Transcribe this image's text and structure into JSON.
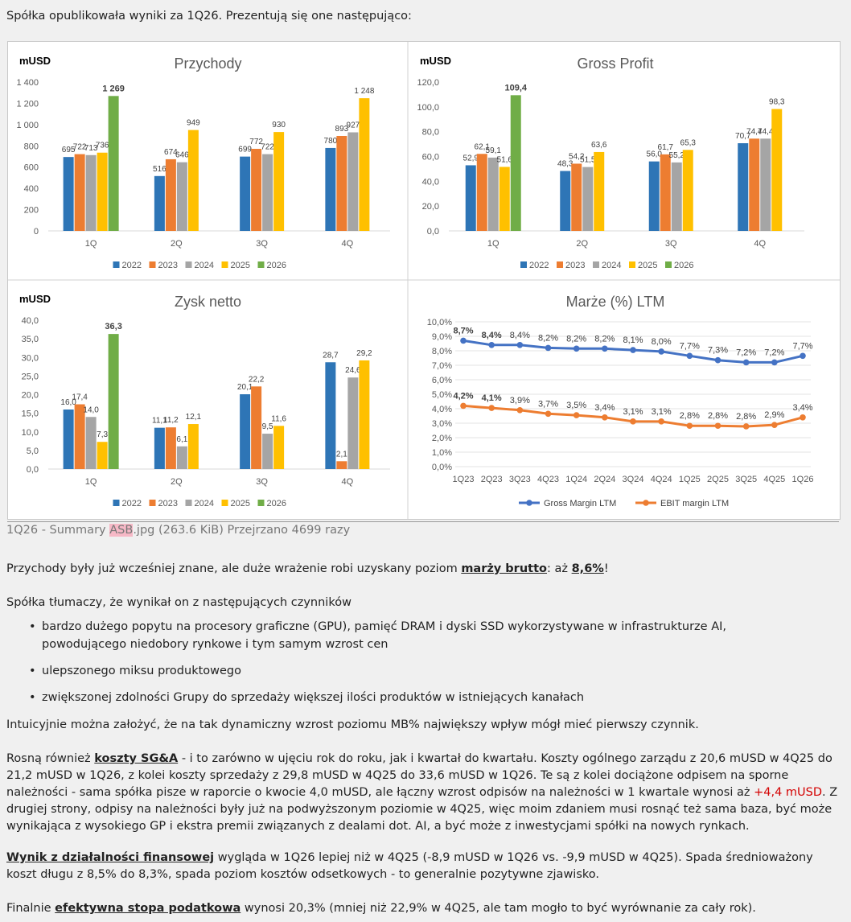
{
  "intro": "Spółka opublikowała wyniki za 1Q26. Prezentują się one następująco:",
  "caption": {
    "pre": "1Q26 - Summary ",
    "hl": "ASB",
    "post": ".jpg (263.6 KiB) Przejrzano 4699 razy"
  },
  "p1": {
    "a": "Przychody były już wcześniej znane, ale duże wrażenie robi uzyskany poziom ",
    "b": "marży brutto",
    "c": ": aż ",
    "d": "8,6%",
    "e": "!"
  },
  "p2": "Spółka tłumaczy, że wynikał on z następujących czynników",
  "bullets": [
    "bardzo dużego popytu na procesory graficzne (GPU), pamięć DRAM i dyski SSD wykorzystywane w infrastrukturze AI, powodującego niedobory rynkowe i tym samym wzrost cen",
    "ulepszonego miksu produktowego",
    "zwiększonej zdolności Grupy do sprzedaży większej ilości produktów w istniejących kanałach"
  ],
  "p3": "Intuicyjnie można założyć, że na tak dynamiczny wzrost poziomu MB% największy wpływ mógł mieć pierwszy czynnik.",
  "p4": {
    "a": "Rosną również ",
    "b": "koszty SG&A",
    "c": " - i to zarówno w ujęciu rok do roku, jak i kwartał do kwartału. Koszty ogólnego zarządu z 20,6 mUSD w 4Q25 do 21,2 mUSD w 1Q26, z kolei koszty sprzedaży z 29,8 mUSD w 4Q25 do 33,6 mUSD w 1Q26. Te są z kolei dociążone odpisem na sporne należności - sama spółka pisze w raporcie o kwocie 4,0 mUSD, ale łączny wzrost odpisów na należności w 1 kwartale wynosi aż ",
    "d": "+4,4 mUSD",
    "e": ". Z drugiej strony, odpisy na należności były już na podwyższonym poziomie w 4Q25, więc moim zdaniem musi rosnąć też sama baza, być może wynikająca z wysokiego GP i ekstra premii związanych z dealami dot. AI, a być może z inwestycjami spółki na nowych rynkach."
  },
  "p5": {
    "a": "Wynik z działalności finansowej",
    "b": " wygląda w 1Q26 lepiej niż w 4Q25 (-8,9 mUSD w 1Q26 vs. -9,9 mUSD w 4Q25). Spada średnioważony koszt długu z 8,5% do 8,3%, spada poziom kosztów odsetkowych - to generalnie pozytywne zjawisko."
  },
  "p6": {
    "a": "Finalnie ",
    "b": "efektywna stopa podatkowa",
    "c": " wynosi 20,3% (mniej niż 22,9% w 4Q25, ale tam mogło to być wyrównanie za cały rok)."
  },
  "colors": {
    "2022": "#2e75b6",
    "2023": "#ed7d31",
    "2024": "#a5a5a5",
    "2025": "#ffc000",
    "2026": "#70ad47",
    "gm": "#4472c4",
    "ebit": "#ed7d31"
  },
  "chart_data": [
    {
      "type": "bar",
      "title": "Przychody",
      "unit": "mUSD",
      "categories": [
        "1Q",
        "2Q",
        "3Q",
        "4Q"
      ],
      "ylim": [
        0,
        1400
      ],
      "yticks": [
        "0",
        "200",
        "400",
        "600",
        "800",
        "1 000",
        "1 200",
        "1 400"
      ],
      "series": [
        {
          "name": "2022",
          "values": [
            695,
            516,
            699,
            780
          ],
          "labels": [
            "695",
            "516",
            "699",
            "780"
          ]
        },
        {
          "name": "2023",
          "values": [
            722,
            674,
            772,
            893
          ],
          "labels": [
            "722",
            "674",
            "772",
            "893"
          ]
        },
        {
          "name": "2024",
          "values": [
            713,
            646,
            722,
            927
          ],
          "labels": [
            "713",
            "646",
            "722",
            "927"
          ]
        },
        {
          "name": "2025",
          "values": [
            736,
            949,
            930,
            1248
          ],
          "labels": [
            "736",
            "949",
            "930",
            "1 248"
          ]
        },
        {
          "name": "2026",
          "values": [
            1269,
            null,
            null,
            null
          ],
          "labels": [
            "1 269",
            "",
            "",
            ""
          ]
        }
      ]
    },
    {
      "type": "bar",
      "title": "Gross Profit",
      "unit": "mUSD",
      "categories": [
        "1Q",
        "2Q",
        "3Q",
        "4Q"
      ],
      "ylim": [
        0,
        120
      ],
      "yticks": [
        "0,0",
        "20,0",
        "40,0",
        "60,0",
        "80,0",
        "100,0",
        "120,0"
      ],
      "series": [
        {
          "name": "2022",
          "values": [
            52.9,
            48.3,
            56.0,
            70.7
          ],
          "labels": [
            "52,9",
            "48,3",
            "56,0",
            "70,7"
          ]
        },
        {
          "name": "2023",
          "values": [
            62.1,
            54.2,
            61.7,
            74.4
          ],
          "labels": [
            "62,1",
            "54,2",
            "61,7",
            "74,4"
          ]
        },
        {
          "name": "2024",
          "values": [
            59.1,
            51.5,
            55.2,
            74.4
          ],
          "labels": [
            "59,1",
            "51,5",
            "55,2",
            "74,4"
          ]
        },
        {
          "name": "2025",
          "values": [
            51.6,
            63.6,
            65.3,
            98.3
          ],
          "labels": [
            "51,6",
            "63,6",
            "65,3",
            "98,3"
          ]
        },
        {
          "name": "2026",
          "values": [
            109.4,
            null,
            null,
            null
          ],
          "labels": [
            "109,4",
            "",
            "",
            ""
          ]
        }
      ]
    },
    {
      "type": "bar",
      "title": "Zysk netto",
      "unit": "mUSD",
      "categories": [
        "1Q",
        "2Q",
        "3Q",
        "4Q"
      ],
      "ylim": [
        0,
        40
      ],
      "yticks": [
        "0,0",
        "5,0",
        "10,0",
        "15,0",
        "20,0",
        "25,0",
        "30,0",
        "35,0",
        "40,0"
      ],
      "series": [
        {
          "name": "2022",
          "values": [
            16.0,
            11.1,
            20.1,
            28.7
          ],
          "labels": [
            "16,0",
            "11,1",
            "20,1",
            "28,7"
          ]
        },
        {
          "name": "2023",
          "values": [
            17.4,
            11.2,
            22.2,
            2.1
          ],
          "labels": [
            "17,4",
            "11,2",
            "22,2",
            "2,1"
          ]
        },
        {
          "name": "2024",
          "values": [
            14.0,
            6.1,
            9.5,
            24.6
          ],
          "labels": [
            "14,0",
            "6,1",
            "9,5",
            "24,6"
          ]
        },
        {
          "name": "2025",
          "values": [
            7.3,
            12.1,
            11.6,
            29.2
          ],
          "labels": [
            "7,3",
            "12,1",
            "11,6",
            "29,2"
          ]
        },
        {
          "name": "2026",
          "values": [
            36.3,
            null,
            null,
            null
          ],
          "labels": [
            "36,3",
            "",
            "",
            ""
          ]
        }
      ]
    },
    {
      "type": "line",
      "title": "Marże (%) LTM",
      "x": [
        "1Q23",
        "2Q23",
        "3Q23",
        "4Q23",
        "1Q24",
        "2Q24",
        "3Q24",
        "4Q24",
        "1Q25",
        "2Q25",
        "3Q25",
        "4Q25",
        "1Q26"
      ],
      "ylim": [
        0,
        10
      ],
      "yticks": [
        "0,0%",
        "1,0%",
        "2,0%",
        "3,0%",
        "4,0%",
        "5,0%",
        "6,0%",
        "7,0%",
        "8,0%",
        "9,0%",
        "10,0%"
      ],
      "series": [
        {
          "name": "Gross Margin LTM",
          "values": [
            8.7,
            8.4,
            8.4,
            8.2,
            8.15,
            8.15,
            8.05,
            7.95,
            7.65,
            7.35,
            7.2,
            7.2,
            7.65
          ],
          "labels": [
            "8,7%",
            "8,4%",
            "8,4%",
            "8,2%",
            "8,2%",
            "8,2%",
            "8,1%",
            "8,0%",
            "7,7%",
            "7,3%",
            "7,2%",
            "7,2%",
            "7,7%"
          ]
        },
        {
          "name": "EBIT margin LTM",
          "values": [
            4.2,
            4.05,
            3.9,
            3.65,
            3.55,
            3.4,
            3.12,
            3.12,
            2.82,
            2.82,
            2.78,
            2.88,
            3.4
          ],
          "labels": [
            "4,2%",
            "4,1%",
            "3,9%",
            "3,7%",
            "3,5%",
            "3,4%",
            "3,1%",
            "3,1%",
            "2,8%",
            "2,8%",
            "2,8%",
            "2,9%",
            "3,4%"
          ]
        }
      ]
    }
  ]
}
